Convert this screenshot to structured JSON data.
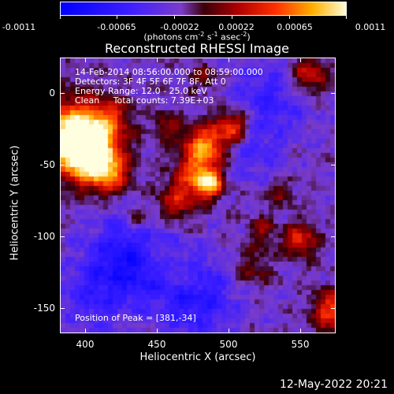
{
  "colorbar": {
    "ticks": [
      "-0.0011",
      "-0.00065",
      "-0.00022",
      "0.00022",
      "0.00065",
      "0.0011"
    ],
    "units_text": "(photons cm",
    "units_exp1": "-2",
    "units_mid": " s",
    "units_exp2": "-1",
    "units_mid2": " asec",
    "units_exp3": "-2",
    "units_end": ")"
  },
  "title": "Reconstructed RHESSI Image",
  "info": {
    "line1": "14-Feb-2014 08:56:00.000 to 08:59:00.000",
    "line2": "Detectors: 3F 4F 5F 6F 7F 8F, Att 0",
    "line3": "Energy Range: 12.0 - 25.0 keV",
    "line4": "Clean     Total counts: 7.39E+03",
    "peak": "Position of Peak = [381,-34]"
  },
  "axes": {
    "xlabel": "Heliocentric X (arcsec)",
    "ylabel": "Heliocentric Y (arcsec)",
    "xticks": [
      "400",
      "450",
      "500",
      "550"
    ],
    "yticks": [
      "0",
      "-50",
      "-100",
      "-150"
    ]
  },
  "datestamp": "12-May-2022 20:21"
}
